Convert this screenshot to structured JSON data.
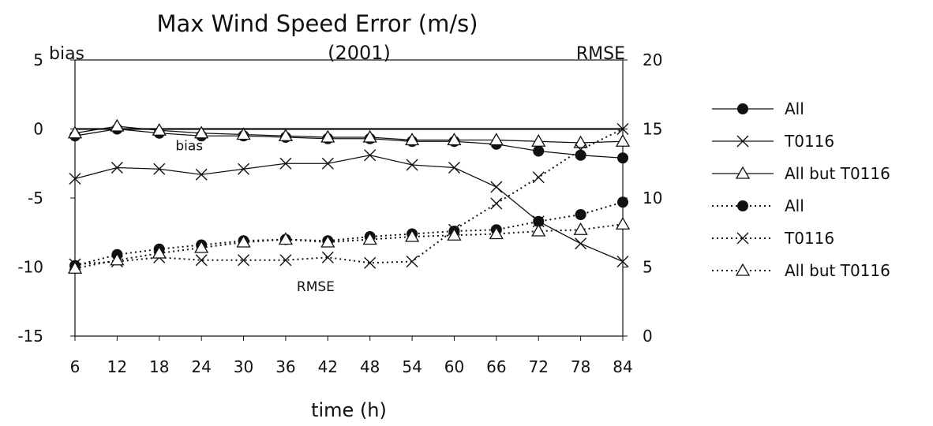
{
  "chart_data": {
    "type": "line",
    "title": "Max Wind Speed Error (m/s)",
    "subtitle": "(2001)",
    "xlabel": "time (h)",
    "ylabel_left": "bias",
    "ylabel_right": "RMSE",
    "categories": [
      "6",
      "12",
      "18",
      "24",
      "30",
      "36",
      "42",
      "48",
      "54",
      "60",
      "66",
      "72",
      "78",
      "84"
    ],
    "y_left": {
      "min": -15,
      "max": 5,
      "ticks": [
        "5",
        "0",
        "-5",
        "-10",
        "-15"
      ]
    },
    "y_right": {
      "min": 0,
      "max": 20,
      "ticks": [
        "20",
        "15",
        "10",
        "5",
        "0"
      ]
    },
    "grid": false,
    "legend_position": "right",
    "annotations": [
      {
        "text": "bias",
        "x_hours": 18,
        "y_bias": -1.2
      },
      {
        "text": "RMSE",
        "x_hours": 36,
        "y_bias": -11.4
      }
    ],
    "series": [
      {
        "name": "All",
        "axis": "left",
        "style": "solid",
        "marker": "dot",
        "values": [
          -0.5,
          0.0,
          -0.3,
          -0.5,
          -0.5,
          -0.6,
          -0.7,
          -0.7,
          -0.9,
          -0.9,
          -1.1,
          -1.6,
          -1.9,
          -2.1
        ]
      },
      {
        "name": "T0116",
        "axis": "left",
        "style": "solid",
        "marker": "x",
        "values": [
          -3.6,
          -2.8,
          -2.9,
          -3.3,
          -2.9,
          -2.5,
          -2.5,
          -1.9,
          -2.6,
          -2.8,
          -4.2,
          -6.7,
          -8.3,
          -9.6
        ]
      },
      {
        "name": "All but T0116",
        "axis": "left",
        "style": "solid",
        "marker": "triangle",
        "values": [
          -0.3,
          0.2,
          -0.1,
          -0.3,
          -0.4,
          -0.5,
          -0.6,
          -0.6,
          -0.8,
          -0.8,
          -0.8,
          -0.9,
          -1.0,
          -0.9
        ]
      },
      {
        "name": "All",
        "axis": "right",
        "style": "dotted",
        "marker": "dot",
        "values": [
          5.1,
          5.9,
          6.3,
          6.6,
          6.9,
          7.0,
          6.9,
          7.2,
          7.4,
          7.6,
          7.7,
          8.3,
          8.8,
          9.7
        ]
      },
      {
        "name": "T0116",
        "axis": "right",
        "style": "dotted",
        "marker": "x",
        "values": [
          5.2,
          5.4,
          5.7,
          5.5,
          5.5,
          5.5,
          5.7,
          5.3,
          5.4,
          7.7,
          9.6,
          11.5,
          13.5,
          15.0
        ]
      },
      {
        "name": "All but T0116",
        "axis": "right",
        "style": "dotted",
        "marker": "triangle",
        "values": [
          4.9,
          5.5,
          6.0,
          6.4,
          6.8,
          7.0,
          6.8,
          7.0,
          7.2,
          7.3,
          7.4,
          7.6,
          7.7,
          8.1
        ]
      }
    ]
  }
}
